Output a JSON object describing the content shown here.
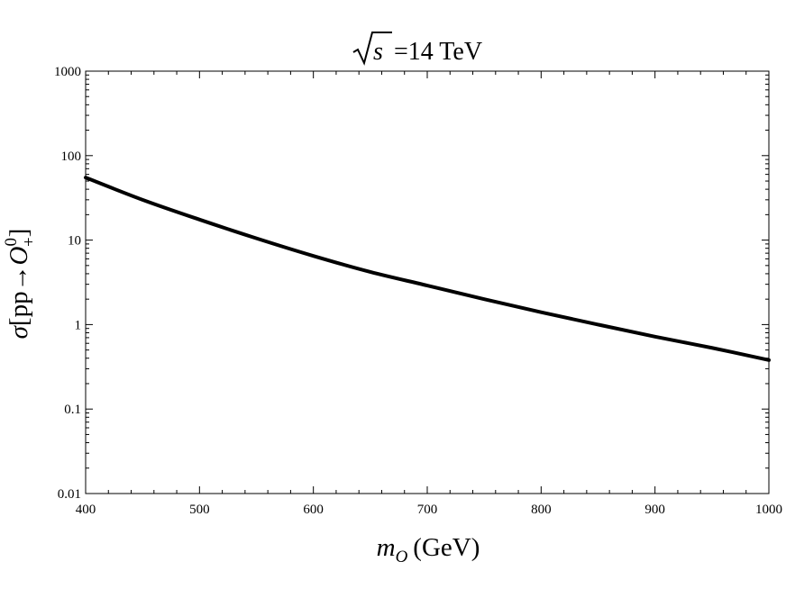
{
  "chart_data": {
    "type": "line",
    "title": {
      "root_symbol": "√",
      "variable": "s",
      "rest": "=14 TeV"
    },
    "xlabel": {
      "symbol": "m",
      "subscript": "O",
      "unit": "(GeV)"
    },
    "ylabel": {
      "sigma": "σ",
      "open": "[pp",
      "arrow": "→",
      "op": "O",
      "superscript": "0",
      "subscript": "+",
      "close": "]"
    },
    "x_scale": "linear",
    "y_scale": "log",
    "xlim": [
      400,
      1000
    ],
    "ylim": [
      0.01,
      1000
    ],
    "x_ticks": [
      400,
      500,
      600,
      700,
      800,
      900,
      1000
    ],
    "x_tick_labels": [
      "400",
      "500",
      "600",
      "700",
      "800",
      "900",
      "1000"
    ],
    "y_ticks": [
      0.01,
      0.1,
      1,
      10,
      100,
      1000
    ],
    "y_tick_labels": [
      "0.01",
      "0.1",
      "1",
      "10",
      "100",
      "1000"
    ],
    "grid": false,
    "frame": true,
    "line_color": "#000000",
    "series": [
      {
        "x": [
          400,
          450,
          500,
          550,
          600,
          650,
          700,
          750,
          800,
          850,
          900,
          950,
          1000
        ],
        "y": [
          55,
          30,
          17.5,
          10.5,
          6.5,
          4.2,
          2.9,
          2.0,
          1.4,
          1.0,
          0.72,
          0.53,
          0.38
        ]
      }
    ]
  }
}
